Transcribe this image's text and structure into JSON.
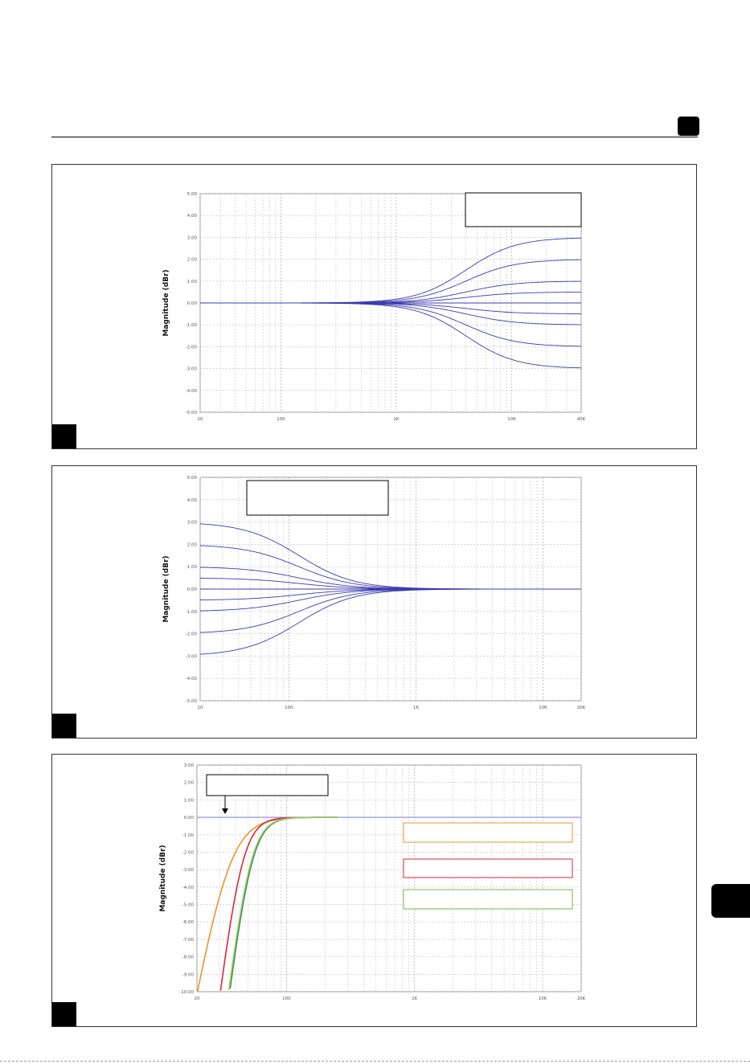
{
  "page": {
    "accent": "#000000"
  },
  "chart_data": [
    {
      "type": "line",
      "ylabel": "Magnitude (dBr)",
      "xscale": "log",
      "xlim": [
        20,
        40000
      ],
      "ylim": [
        -5,
        5
      ],
      "y_ticks": [
        "5.00",
        "4.00",
        "3.00",
        "2.00",
        "1.00",
        "0.00",
        "-1.00",
        "-2.00",
        "-3.00",
        "-4.00",
        "-5.00"
      ],
      "y_tick_values": [
        5,
        4,
        3,
        2,
        1,
        0,
        -1,
        -2,
        -3,
        -4,
        -5
      ],
      "x_ticks": [
        "20",
        "100",
        "1K",
        "10K",
        "40K"
      ],
      "x_tick_values": [
        20,
        100,
        1000,
        10000,
        40000
      ],
      "grid": true,
      "line_color": "#3b3bb0",
      "curve_shape": "high-shelf",
      "corner_hz": 4000,
      "x_range_drawn": [
        20,
        40000
      ],
      "series": [
        {
          "gain_db": 3.0
        },
        {
          "gain_db": 2.0
        },
        {
          "gain_db": 1.0
        },
        {
          "gain_db": 0.5
        },
        {
          "gain_db": 0.0
        },
        {
          "gain_db": -0.5
        },
        {
          "gain_db": -1.0
        },
        {
          "gain_db": -2.0
        },
        {
          "gain_db": -3.0
        }
      ],
      "label_box": {
        "position": "top-right",
        "text": ""
      }
    },
    {
      "type": "line",
      "ylabel": "Magnitude (dBr)",
      "xscale": "log",
      "xlim": [
        20,
        20000
      ],
      "ylim": [
        -5,
        5
      ],
      "y_ticks": [
        "5.00",
        "4.00",
        "3.00",
        "2.00",
        "1.00",
        "0.00",
        "-1.00",
        "-2.00",
        "-3.00",
        "-4.00",
        "-5.00"
      ],
      "y_tick_values": [
        5,
        4,
        3,
        2,
        1,
        0,
        -1,
        -2,
        -3,
        -4,
        -5
      ],
      "x_ticks": [
        "20",
        "100",
        "1K",
        "10K",
        "20K"
      ],
      "x_tick_values": [
        20,
        100,
        1000,
        10000,
        20000
      ],
      "grid": true,
      "line_color": "#3b3bb0",
      "curve_shape": "low-shelf",
      "corner_hz": 120,
      "x_range_drawn": [
        20,
        20000
      ],
      "series": [
        {
          "gain_db": 3.0
        },
        {
          "gain_db": 2.0
        },
        {
          "gain_db": 1.0
        },
        {
          "gain_db": 0.5
        },
        {
          "gain_db": 0.0
        },
        {
          "gain_db": -0.5
        },
        {
          "gain_db": -1.0
        },
        {
          "gain_db": -2.0
        },
        {
          "gain_db": -3.0
        }
      ],
      "label_box": {
        "position": "top-left",
        "text": ""
      }
    },
    {
      "type": "line",
      "ylabel": "Magnitude (dBr)",
      "xscale": "log",
      "xlim": [
        20,
        20000
      ],
      "ylim": [
        -10,
        3
      ],
      "y_ticks": [
        "3.00",
        "2.00",
        "1.00",
        "0.00",
        "-1.00",
        "-2.00",
        "-3.00",
        "-4.00",
        "-5.00",
        "-6.00",
        "-7.00",
        "-8.00",
        "-9.00",
        "-10.00"
      ],
      "y_tick_values": [
        3,
        2,
        1,
        0,
        -1,
        -2,
        -3,
        -4,
        -5,
        -6,
        -7,
        -8,
        -9,
        -10
      ],
      "x_ticks": [
        "20",
        "100",
        "1K",
        "10K",
        "20K"
      ],
      "x_tick_values": [
        20,
        100,
        1000,
        10000,
        20000
      ],
      "grid": true,
      "reference_line_color": "#8a8ad6",
      "curve_shape": "high-pass",
      "x_range_drawn": [
        20,
        250
      ],
      "series": [
        {
          "color": "#e8962c",
          "cutoff_hz": 35,
          "order": 2
        },
        {
          "color": "#d8283c",
          "cutoff_hz": 44,
          "order": 3
        },
        {
          "color": "#3a8a3a",
          "cutoff_hz": 52,
          "order": 3
        },
        {
          "color": "#9ccc78",
          "cutoff_hz": 51,
          "order": 3
        }
      ],
      "label_box": {
        "position": "top-left",
        "text": "",
        "has_arrow": true
      },
      "legend_boxes": [
        {
          "color": "#e8962c",
          "text": ""
        },
        {
          "color": "#d8283c",
          "text": ""
        },
        {
          "color": "#7ab648",
          "text": ""
        }
      ]
    }
  ]
}
